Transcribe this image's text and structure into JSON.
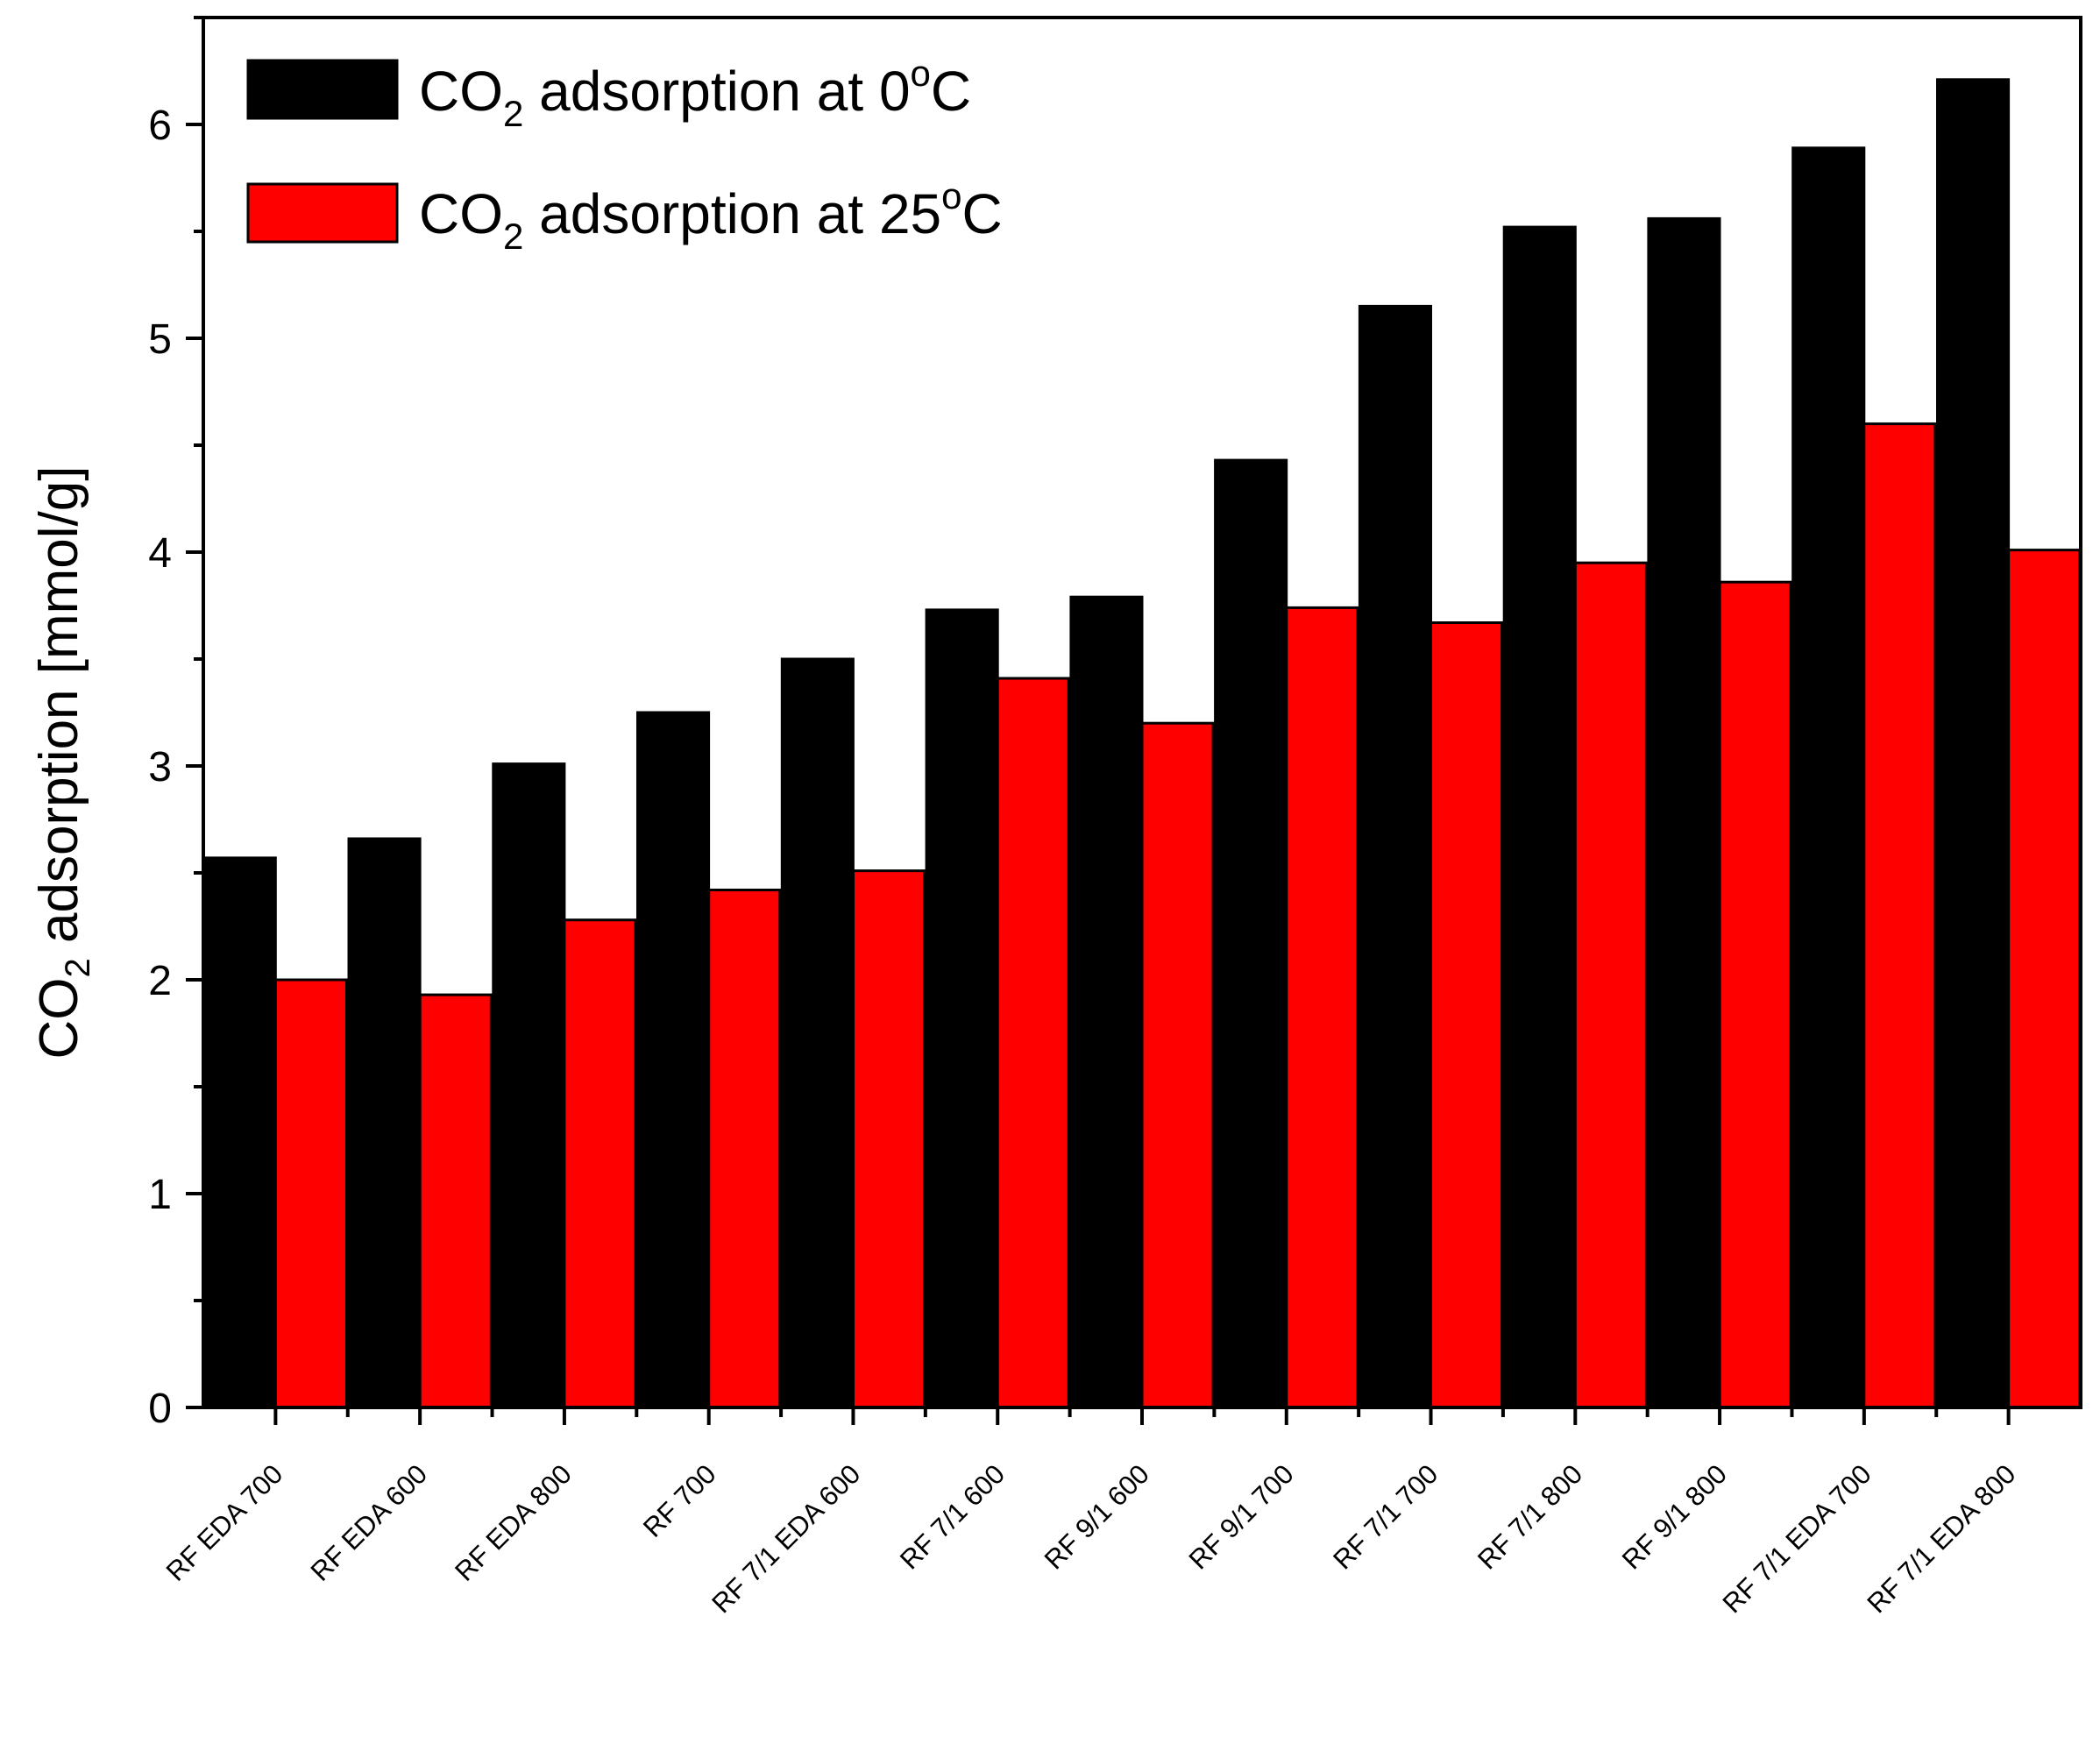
{
  "chart_data": {
    "type": "bar",
    "title": "",
    "xlabel": "",
    "ylabel": {
      "prefix": "CO",
      "subscript": "2",
      "suffix": " adsorption [mmol/g]"
    },
    "ylim": [
      0,
      6.5
    ],
    "yticks": [
      "0",
      "1",
      "2",
      "3",
      "4",
      "5",
      "6"
    ],
    "categories": [
      "RF EDA 700",
      "RF EDA 600",
      "RF EDA 800",
      "RF 700",
      "RF 7/1 EDA 600",
      "RF 7/1 600",
      "RF 9/1 600",
      "RF 9/1 700",
      "RF 7/1 700",
      "RF 7/1 800",
      "RF 9/1 800",
      "RF 7/1 EDA 700",
      "RF 7/1 EDA 800"
    ],
    "series": [
      {
        "name": "CO2 adsorption at 0°C",
        "legend": {
          "prefix": "CO",
          "subscript": "2",
          "middle": " adsorption at 0",
          "degree": "o",
          "suffix": "C"
        },
        "color": "#000000",
        "values": [
          2.57,
          2.66,
          3.01,
          3.25,
          3.5,
          3.73,
          3.79,
          4.43,
          5.15,
          5.52,
          5.56,
          5.89,
          6.21
        ]
      },
      {
        "name": "CO2 adsorption at 25°C",
        "legend": {
          "prefix": "CO",
          "subscript": "2",
          "middle": " adsorption at 25",
          "degree": "o",
          "suffix": "C"
        },
        "color": "#ff0000",
        "values": [
          2.0,
          1.93,
          2.28,
          2.42,
          2.51,
          3.41,
          3.2,
          3.74,
          3.67,
          3.95,
          3.86,
          4.6,
          4.01
        ]
      }
    ],
    "grid": false,
    "legend_position": "top-left"
  }
}
